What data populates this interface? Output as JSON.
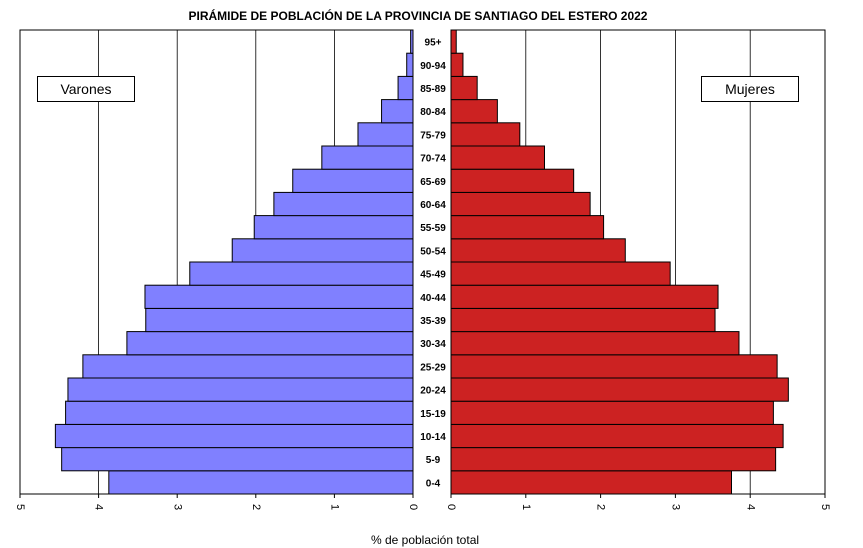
{
  "chart_data": {
    "type": "bar",
    "orientation": "horizontal-population-pyramid",
    "title": "PIRÁMIDE DE POBLACIÓN DE LA PROVINCIA DE SANTIAGO DEL ESTERO 2022",
    "xlabel": "% de población total",
    "xlim": [
      0,
      5
    ],
    "left_ticks": [
      "5",
      "4",
      "3",
      "2",
      "1",
      "0"
    ],
    "right_ticks": [
      "0",
      "1",
      "2",
      "3",
      "4",
      "5"
    ],
    "grid": true,
    "categories": [
      "0-4",
      "5-9",
      "10-14",
      "15-19",
      "20-24",
      "25-29",
      "30-34",
      "35-39",
      "40-44",
      "45-49",
      "50-54",
      "55-59",
      "60-64",
      "65-69",
      "70-74",
      "75-79",
      "80-84",
      "85-89",
      "90-94",
      "95+"
    ],
    "series": [
      {
        "name": "Varones",
        "color": "#8080ff",
        "values": [
          3.87,
          4.47,
          4.55,
          4.42,
          4.39,
          4.2,
          3.64,
          3.4,
          3.41,
          2.84,
          2.3,
          2.02,
          1.77,
          1.53,
          1.16,
          0.7,
          0.4,
          0.19,
          0.08,
          0.03
        ]
      },
      {
        "name": "Mujeres",
        "color": "#cc2222",
        "values": [
          3.75,
          4.34,
          4.44,
          4.31,
          4.51,
          4.36,
          3.85,
          3.53,
          3.57,
          2.93,
          2.33,
          2.04,
          1.86,
          1.64,
          1.25,
          0.92,
          0.62,
          0.35,
          0.16,
          0.07
        ]
      }
    ]
  }
}
